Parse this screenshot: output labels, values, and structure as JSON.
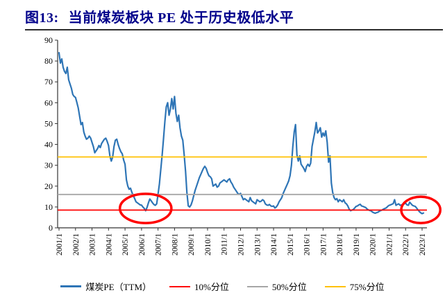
{
  "figure": {
    "label": "图13:",
    "title": "当前煤炭板块 PE 处于历史极低水平",
    "title_color": "#00008B"
  },
  "chart_data": {
    "type": "line",
    "title": "当前煤炭板块PE处于历史极低水平",
    "x_axis": {
      "start_year": 2001,
      "tick_labels": [
        "2001/1",
        "2002/1",
        "2003/1",
        "2004/1",
        "2005/1",
        "2006/1",
        "2007/1",
        "2008/1",
        "2009/1",
        "2010/1",
        "2011/1",
        "2012/1",
        "2013/1",
        "2014/1",
        "2015/1",
        "2016/1",
        "2017/1",
        "2018/1",
        "2019/1",
        "2020/1",
        "2021/1",
        "2022/1",
        "2023/1"
      ]
    },
    "y_axis": {
      "range": [
        0,
        90
      ],
      "ticks": [
        0,
        10,
        20,
        30,
        40,
        50,
        60,
        70,
        80,
        90
      ]
    },
    "series": [
      {
        "name": "煤炭PE（TTM）",
        "color": "#2E75B6",
        "frequency": "monthly",
        "start": "2001/1",
        "end": "2023/2",
        "values": [
          84,
          79,
          81,
          77,
          75,
          74,
          77,
          71,
          69,
          67,
          64,
          63,
          62.5,
          60,
          57.5,
          53.5,
          49.5,
          50.5,
          46,
          44,
          42.5,
          43,
          44,
          43,
          41,
          39,
          36,
          37,
          38,
          39.5,
          38.5,
          40.5,
          41.5,
          42.5,
          43,
          41.5,
          39.5,
          34.5,
          32,
          34,
          39,
          42,
          42.5,
          40,
          38,
          36.5,
          35.5,
          32.5,
          30.5,
          23,
          20,
          18.5,
          19,
          17,
          15.5,
          14,
          12.5,
          12,
          11.5,
          11,
          10.9,
          10,
          9.3,
          8.2,
          9.8,
          12,
          13.8,
          13,
          12,
          11.2,
          10.8,
          11.5,
          16,
          21,
          28,
          35,
          43,
          51,
          58,
          60,
          54,
          57,
          62,
          57,
          63,
          55,
          51,
          54,
          48,
          44,
          42,
          35,
          27,
          17,
          10.5,
          10,
          11,
          13,
          15.5,
          18,
          20,
          22,
          24,
          25.5,
          27,
          28.5,
          29.5,
          28.5,
          26.5,
          25,
          24.5,
          23.5,
          20,
          20.5,
          21,
          19.5,
          20,
          21.5,
          22,
          22.5,
          23,
          22.5,
          22,
          23,
          23.5,
          22,
          21,
          19.5,
          18.5,
          17.5,
          16.5,
          16,
          16.5,
          15,
          13.5,
          14,
          13.5,
          13,
          12.5,
          14.5,
          13,
          12.5,
          12,
          11.5,
          13.5,
          13,
          12.5,
          12.8,
          13.5,
          13,
          11.5,
          11,
          10.8,
          11.2,
          10.5,
          10.3,
          10.5,
          9.5,
          10,
          11,
          12.5,
          13.5,
          14.5,
          16.5,
          18,
          19.5,
          21,
          22.5,
          25,
          30,
          39,
          46,
          49.5,
          35,
          32,
          34.5,
          30.5,
          29.5,
          28.5,
          27,
          29.5,
          30.5,
          29.5,
          31,
          39,
          42.5,
          46,
          50.5,
          45.5,
          46.5,
          48,
          43.5,
          45.5,
          44,
          46.5,
          41,
          31.5,
          34.5,
          21.5,
          17,
          14.5,
          13.5,
          14,
          12.5,
          13.5,
          13,
          12.5,
          13.5,
          12,
          11.5,
          10.5,
          9,
          8.2,
          8.5,
          8.8,
          9.5,
          10.3,
          10.5,
          11,
          11.3,
          10.5,
          10.3,
          10,
          9.7,
          9,
          8.6,
          8.3,
          8.1,
          7.5,
          7.2,
          7,
          7.3,
          7.5,
          8,
          8.3,
          8.6,
          9,
          9.3,
          9.6,
          10.3,
          10.8,
          11,
          11.3,
          11.6,
          13.5,
          10.8,
          11.2,
          11.5,
          10.8,
          11,
          11.2,
          11.5,
          11.9,
          11,
          10.8,
          12.3,
          11.5,
          10.8,
          10.5,
          10.3,
          9.5,
          8.6,
          7.8,
          7.2,
          6.8,
          7.1
        ]
      }
    ],
    "reference_lines": [
      {
        "name": "10%分位",
        "value": 8.5,
        "color": "#FF0000"
      },
      {
        "name": "50%分位",
        "value": 16,
        "color": "#A6A6A6"
      },
      {
        "name": "75%分位",
        "value": 34,
        "color": "#FFC000"
      }
    ],
    "annotations": [
      {
        "shape": "ellipse",
        "name": "low-pe-circle-2006",
        "center_year": 2006.25,
        "center_value": 9.3,
        "radius_years": 1.56,
        "radius_value": 7,
        "color": "#FF0000"
      },
      {
        "shape": "ellipse",
        "name": "low-pe-circle-2022",
        "center_year": 2022.92,
        "center_value": 8.6,
        "radius_years": 1.18,
        "radius_value": 6.3,
        "color": "#FF0000"
      }
    ],
    "legend": [
      {
        "label": "煤炭PE（TTM）",
        "color": "#2E75B6",
        "thickness": 3
      },
      {
        "label": "10%分位",
        "color": "#FF0000",
        "thickness": 2
      },
      {
        "label": "50%分位",
        "color": "#A6A6A6",
        "thickness": 2
      },
      {
        "label": "75%分位",
        "color": "#FFC000",
        "thickness": 2
      }
    ]
  }
}
